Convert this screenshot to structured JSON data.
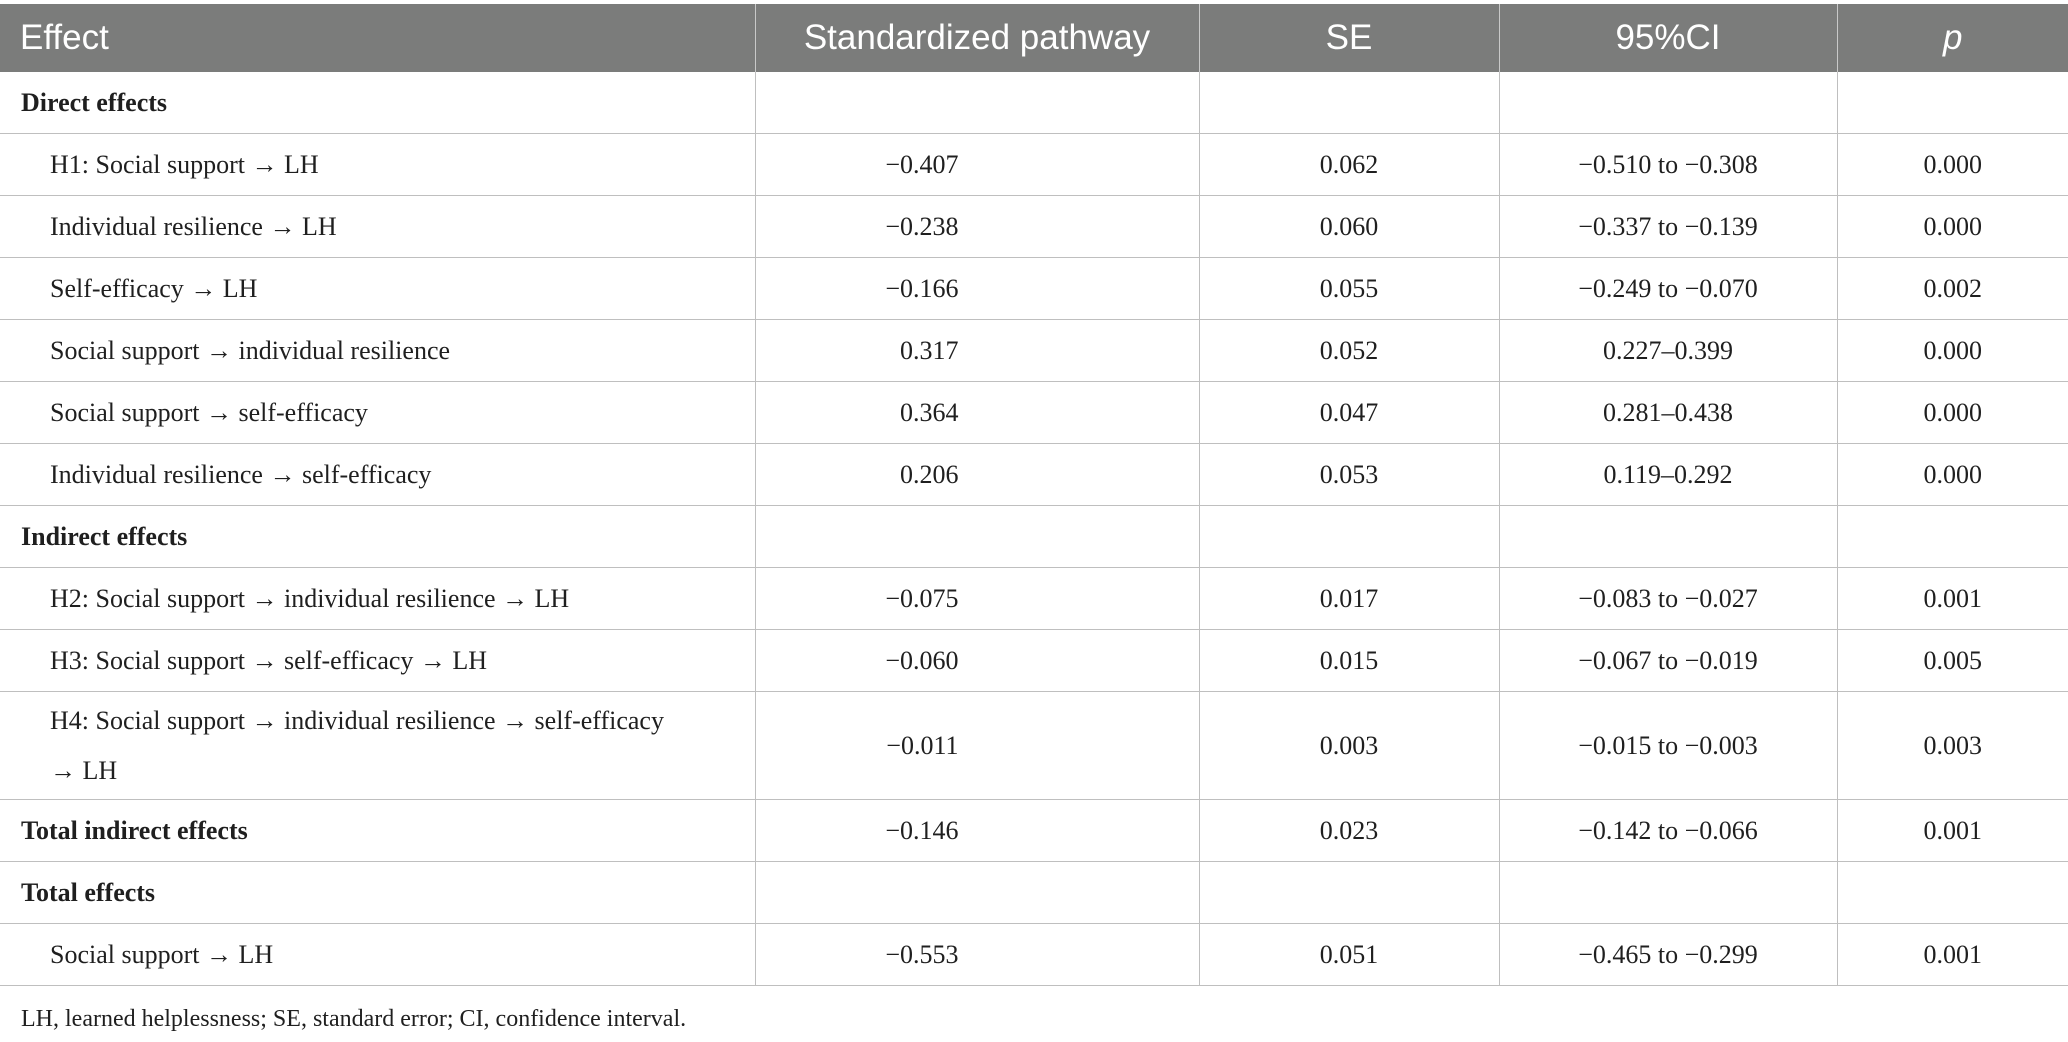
{
  "table": {
    "headers": [
      "Effect",
      "Standardized pathway",
      "SE",
      "95%CI",
      "p"
    ],
    "rows": [
      {
        "effect": "Direct effects",
        "std": "",
        "se": "",
        "ci": "",
        "p": ""
      },
      {
        "effect": "H1: Social support → LH",
        "std": "−0.407",
        "se": "0.062",
        "ci": "−0.510 to −0.308",
        "p": "0.000"
      },
      {
        "effect": "Individual resilience → LH",
        "std": "−0.238",
        "se": "0.060",
        "ci": "−0.337 to −0.139",
        "p": "0.000"
      },
      {
        "effect": "Self-efficacy → LH",
        "std": "−0.166",
        "se": "0.055",
        "ci": "−0.249 to −0.070",
        "p": "0.002"
      },
      {
        "effect": "Social support → individual resilience",
        "std": "0.317",
        "se": "0.052",
        "ci": "0.227–0.399",
        "p": "0.000"
      },
      {
        "effect": "Social support → self-efficacy",
        "std": "0.364",
        "se": "0.047",
        "ci": "0.281–0.438",
        "p": "0.000"
      },
      {
        "effect": "Individual resilience → self-efficacy",
        "std": "0.206",
        "se": "0.053",
        "ci": "0.119–0.292",
        "p": "0.000"
      },
      {
        "effect": "Indirect effects",
        "std": "",
        "se": "",
        "ci": "",
        "p": ""
      },
      {
        "effect": "H2: Social support → individual resilience → LH",
        "std": "−0.075",
        "se": "0.017",
        "ci": "−0.083 to −0.027",
        "p": "0.001"
      },
      {
        "effect": "H3: Social support → self-efficacy → LH",
        "std": "−0.060",
        "se": "0.015",
        "ci": "−0.067 to −0.019",
        "p": "0.005"
      },
      {
        "effect": "H4: Social support → individual resilience → self-efficacy → LH",
        "std": "−0.011",
        "se": "0.003",
        "ci": "−0.015 to −0.003",
        "p": "0.003"
      },
      {
        "effect": "Total indirect effects",
        "std": "−0.146",
        "se": "0.023",
        "ci": "−0.142 to −0.066",
        "p": "0.001"
      },
      {
        "effect": "Total effects",
        "std": "",
        "se": "",
        "ci": "",
        "p": ""
      },
      {
        "effect": "Social support → LH",
        "std": "−0.553",
        "se": "0.051",
        "ci": "−0.465 to −0.299",
        "p": "0.001"
      }
    ]
  },
  "footnote": "LH, learned helplessness; SE, standard error; CI, confidence interval."
}
